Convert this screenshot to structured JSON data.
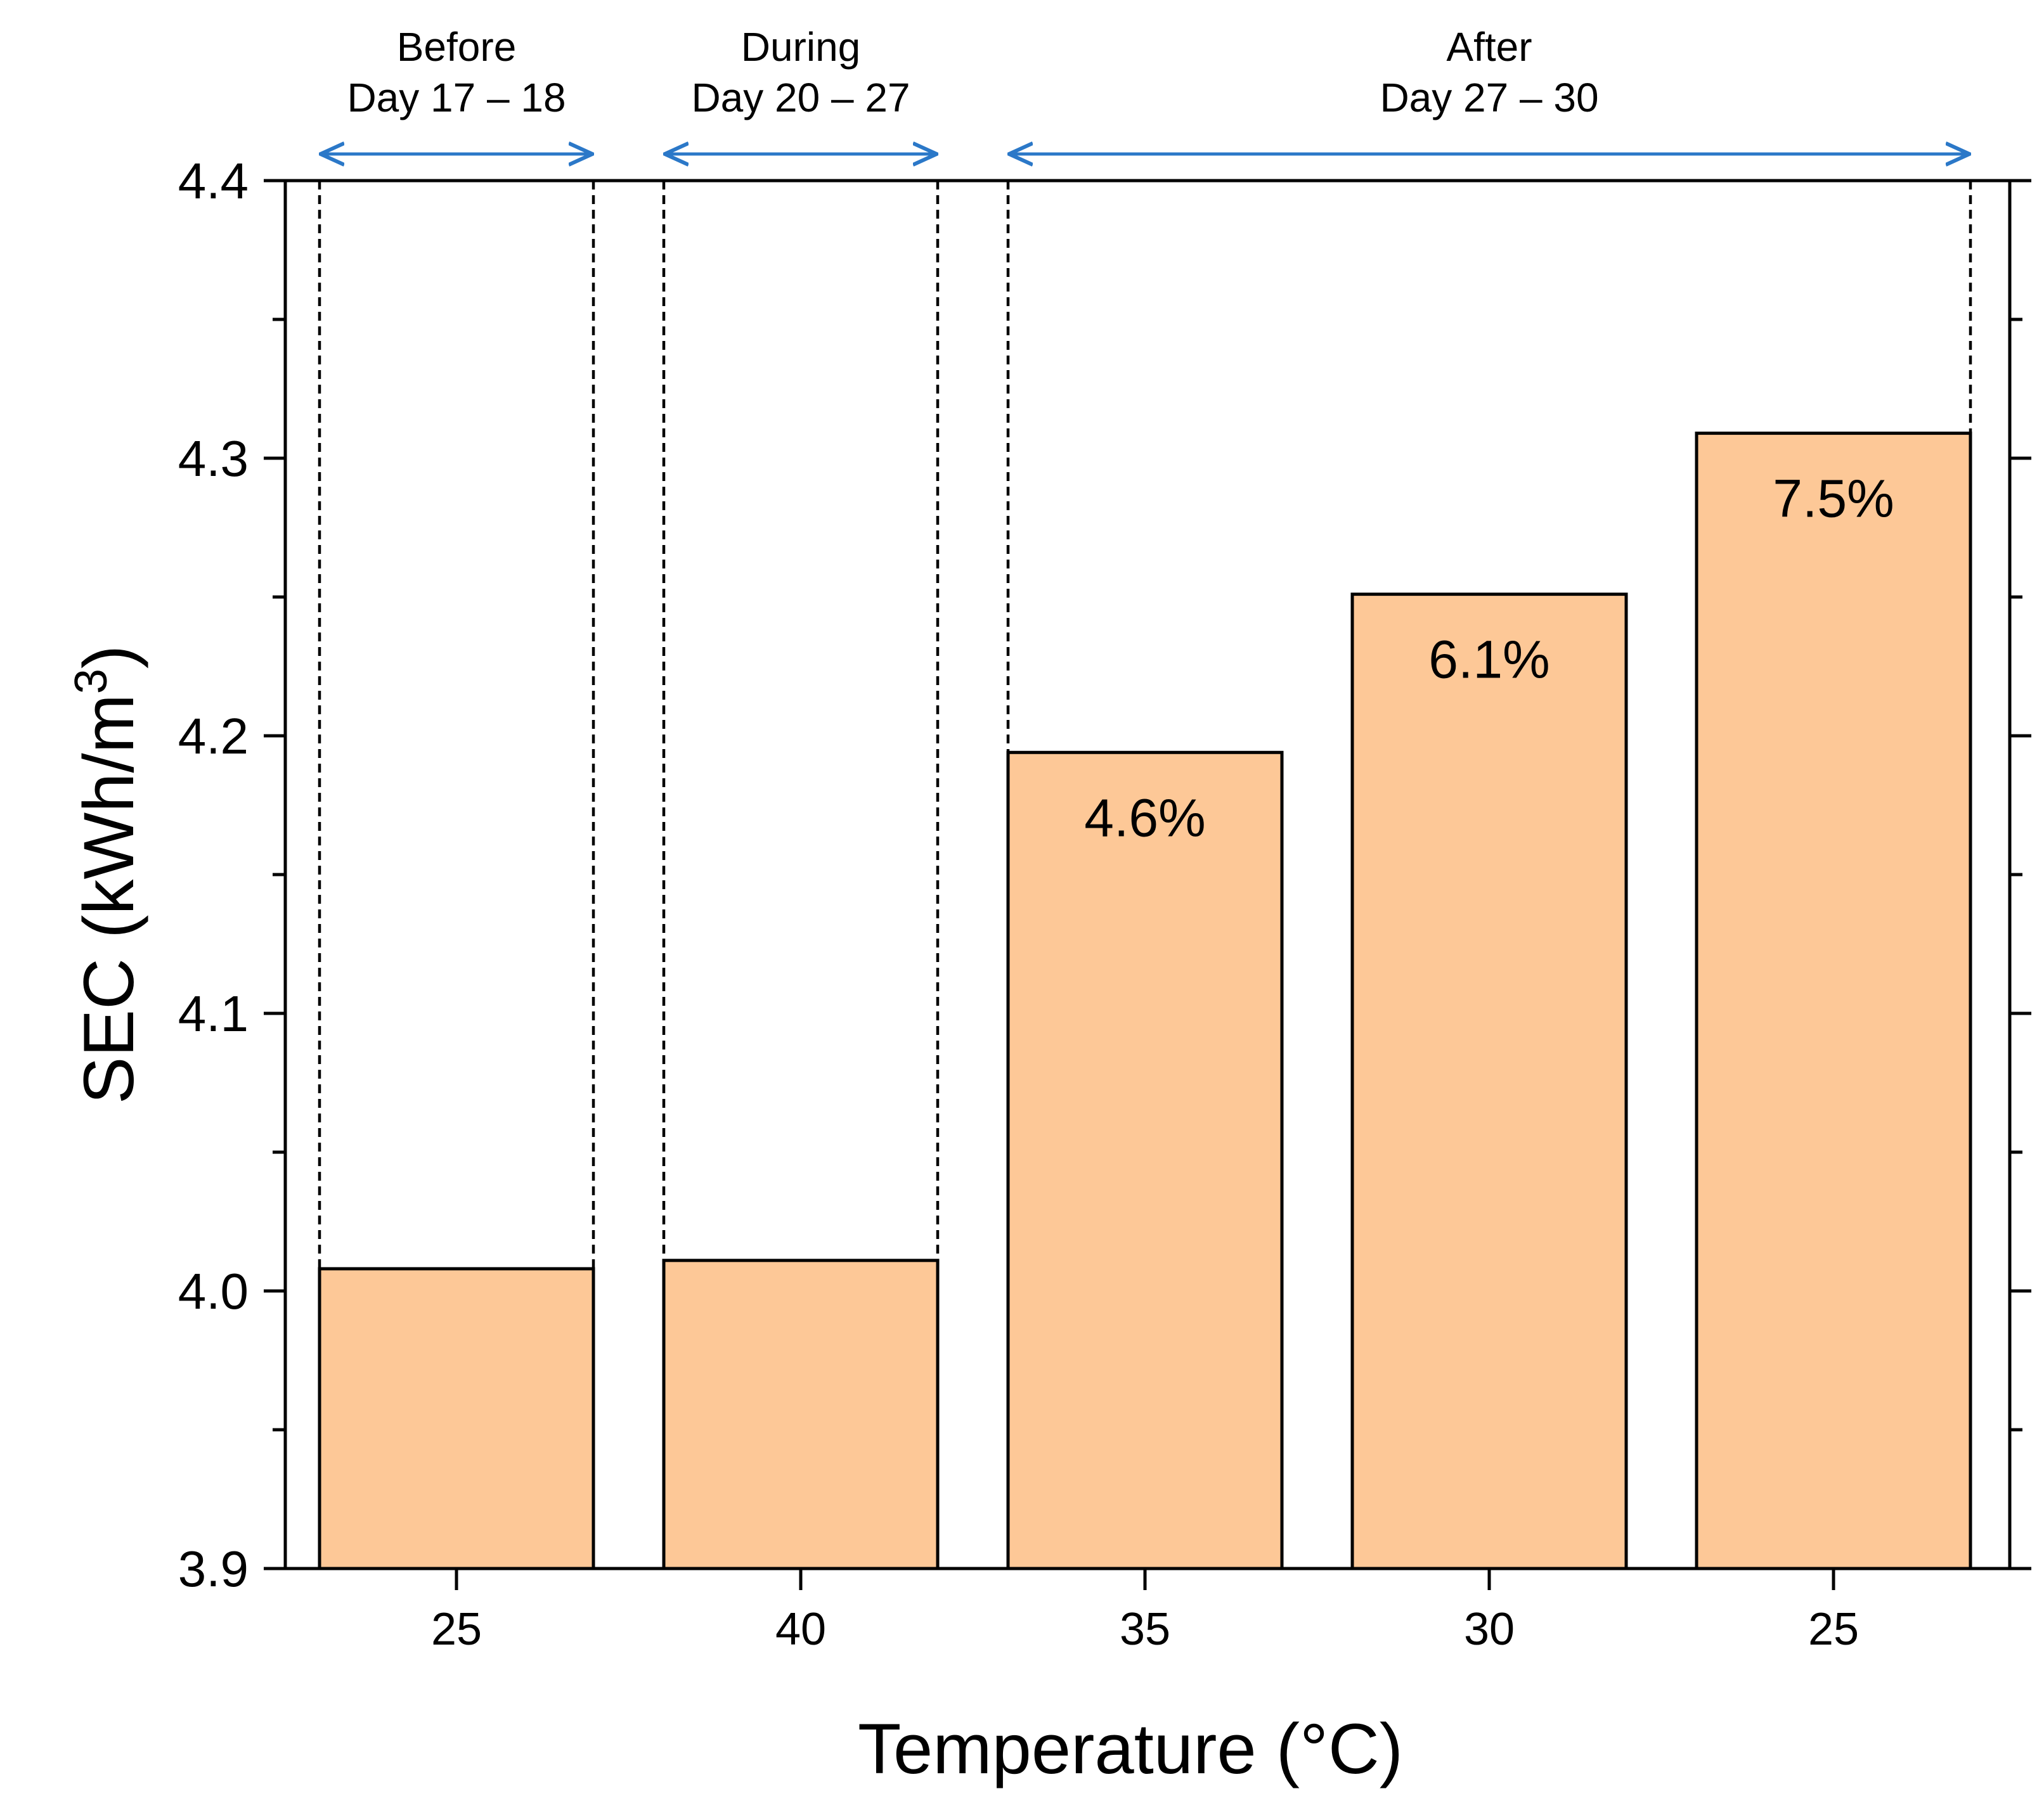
{
  "chart_data": {
    "type": "bar",
    "title": "",
    "xlabel": "Temperature (°C)",
    "ylabel_main": "SEC (kWh/m",
    "ylabel_sup": "3",
    "ylabel_close": ")",
    "ylim": [
      3.9,
      4.4
    ],
    "ytick_step": 0.1,
    "ytick_minor_step": 0.05,
    "ytick_labels": [
      "3.9",
      "4.0",
      "4.1",
      "4.2",
      "4.3",
      "4.4"
    ],
    "categories": [
      "25",
      "40",
      "35",
      "30",
      "25"
    ],
    "values": [
      4.008,
      4.011,
      4.194,
      4.251,
      4.309
    ],
    "bar_labels": [
      "",
      "",
      "4.6%",
      "6.1%",
      "7.5%"
    ],
    "grid": false,
    "colors": {
      "bar_fill": "#FDC897",
      "bar_stroke": "#000000",
      "arrow": "#2B78C8"
    },
    "periods": [
      {
        "name": "Before",
        "days": "Day 17 – 18",
        "first_bar": 0,
        "last_bar": 0
      },
      {
        "name": "During",
        "days": "Day 20 – 27",
        "first_bar": 1,
        "last_bar": 1
      },
      {
        "name": "After",
        "days": "Day 27 – 30",
        "first_bar": 2,
        "last_bar": 4
      }
    ]
  }
}
